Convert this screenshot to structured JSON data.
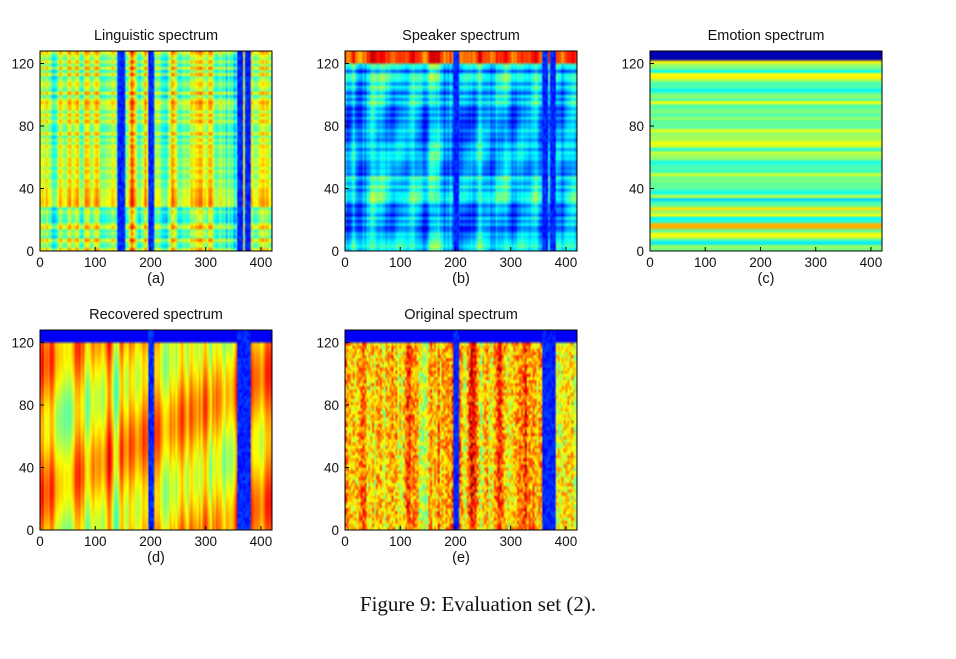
{
  "figure": {
    "caption": "Figure 9: Evaluation set (2)."
  },
  "chart_data": [
    {
      "type": "heatmap",
      "title": "Linguistic spectrum",
      "panel_label": "(a)",
      "xlim": [
        0,
        420
      ],
      "ylim": [
        0,
        128
      ],
      "xticks": [
        0,
        100,
        200,
        300,
        400
      ],
      "yticks": [
        0,
        40,
        80,
        120
      ],
      "colormap": "jet",
      "pattern": "vertical-stripes-with-horizontal-bands",
      "mean_level": 0.55,
      "dark_columns": [
        145,
        200,
        360,
        375
      ]
    },
    {
      "type": "heatmap",
      "title": "Speaker spectrum",
      "panel_label": "(b)",
      "xlim": [
        0,
        420
      ],
      "ylim": [
        0,
        128
      ],
      "xticks": [
        0,
        100,
        200,
        300,
        400
      ],
      "yticks": [
        0,
        40,
        80,
        120
      ],
      "colormap": "jet",
      "pattern": "mostly-cool-with-horizontal-bands",
      "mean_level": 0.3,
      "dark_columns": [
        200,
        360,
        375
      ]
    },
    {
      "type": "heatmap",
      "title": "Emotion spectrum",
      "panel_label": "(c)",
      "xlim": [
        0,
        420
      ],
      "ylim": [
        0,
        128
      ],
      "xticks": [
        0,
        100,
        200,
        300,
        400
      ],
      "yticks": [
        0,
        40,
        80,
        120
      ],
      "colormap": "jet",
      "pattern": "horizontal-bands-only",
      "mean_level": 0.5,
      "dark_columns": []
    },
    {
      "type": "heatmap",
      "title": "Recovered spectrum",
      "panel_label": "(d)",
      "xlim": [
        0,
        420
      ],
      "ylim": [
        0,
        128
      ],
      "xticks": [
        0,
        100,
        200,
        300,
        400
      ],
      "yticks": [
        0,
        40,
        80,
        120
      ],
      "colormap": "jet",
      "pattern": "smooth-vertical-warm",
      "mean_level": 0.65,
      "dark_columns": [
        200,
        362,
        375
      ]
    },
    {
      "type": "heatmap",
      "title": "Original spectrum",
      "panel_label": "(e)",
      "xlim": [
        0,
        420
      ],
      "ylim": [
        0,
        128
      ],
      "xticks": [
        0,
        100,
        200,
        300,
        400
      ],
      "yticks": [
        0,
        40,
        80,
        120
      ],
      "colormap": "jet",
      "pattern": "noisy-vertical-warm",
      "mean_level": 0.68,
      "dark_columns": [
        200,
        362,
        375
      ]
    }
  ]
}
